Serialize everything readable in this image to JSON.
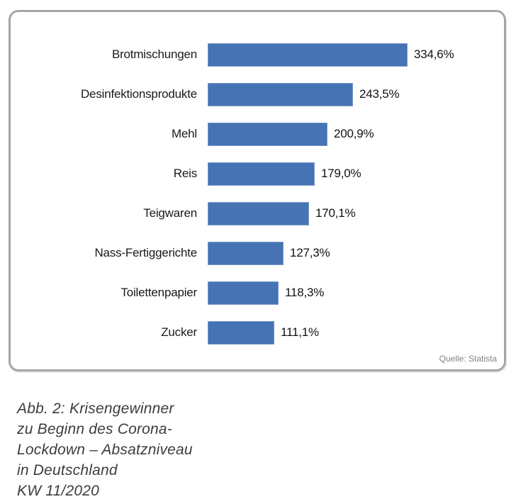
{
  "chart_data": {
    "type": "bar",
    "orientation": "horizontal",
    "categories": [
      "Brotmischungen",
      "Desinfektionsprodukte",
      "Mehl",
      "Reis",
      "Teigwaren",
      "Nass-Fertiggerichte",
      "Toilettenpapier",
      "Zucker"
    ],
    "values": [
      334.6,
      243.5,
      200.9,
      179.0,
      170.1,
      127.3,
      118.3,
      111.1
    ],
    "value_labels": [
      "334,6%",
      "243,5%",
      "200,9%",
      "179,0%",
      "170,1%",
      "127,3%",
      "118,3%",
      "111,1%"
    ],
    "unit": "%",
    "xlim": [
      0,
      400
    ],
    "grid": false,
    "legend": "none",
    "bar_color": "#4673b4",
    "source": "Quelle: Statista"
  },
  "caption": {
    "lines": [
      "Abb. 2: Krisengewinner",
      "zu Beginn des Corona-",
      "Lockdown – Absatzniveau",
      "in Deutschland",
      "KW 11/2020"
    ]
  }
}
